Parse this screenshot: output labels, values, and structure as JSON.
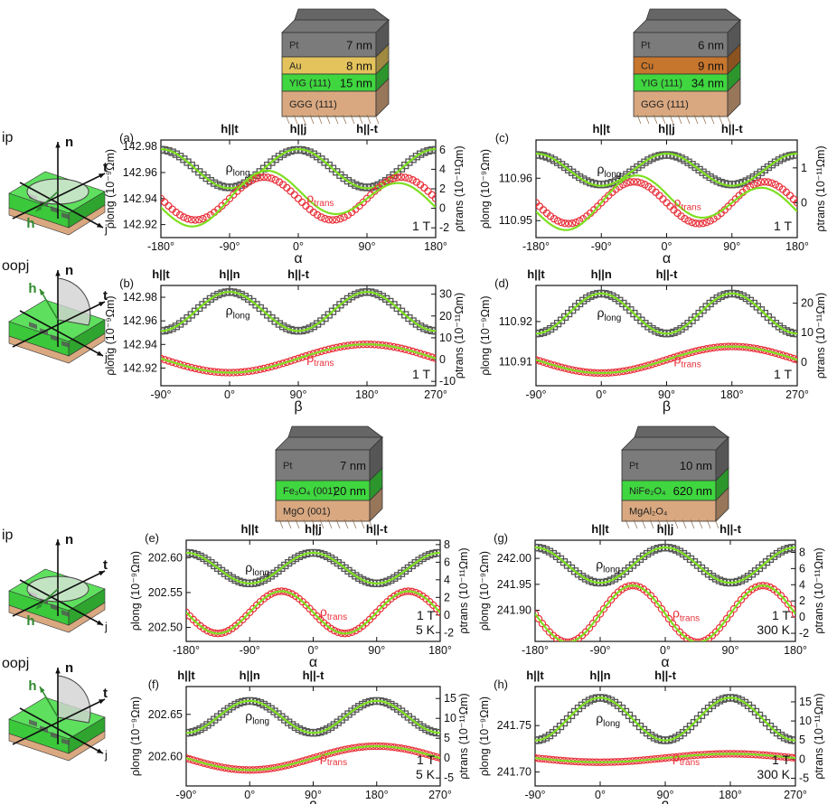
{
  "figure": {
    "stacks": [
      {
        "id": "s1",
        "layers": [
          {
            "material": "Pt",
            "thickness": "7 nm",
            "color": "#7b7b7b"
          },
          {
            "material": "Au",
            "thickness": "8 nm",
            "color": "#e4c35c"
          },
          {
            "material": "YIG (111)",
            "thickness": "15 nm",
            "color": "#3fd63f"
          },
          {
            "material": "GGG (111)",
            "thickness": "",
            "color": "#d9a880"
          }
        ]
      },
      {
        "id": "s2",
        "layers": [
          {
            "material": "Pt",
            "thickness": "6 nm",
            "color": "#7b7b7b"
          },
          {
            "material": "Cu",
            "thickness": "9 nm",
            "color": "#c7762d"
          },
          {
            "material": "YIG (111)",
            "thickness": "34 nm",
            "color": "#3fd63f"
          },
          {
            "material": "GGG (111)",
            "thickness": "",
            "color": "#d9a880"
          }
        ]
      },
      {
        "id": "s3",
        "layers": [
          {
            "material": "Pt",
            "thickness": "7 nm",
            "color": "#7b7b7b"
          },
          {
            "material": "Fe₃O₄ (001)",
            "thickness": "20 nm",
            "color": "#3fd63f"
          },
          {
            "material": "MgO (001)",
            "thickness": "",
            "color": "#d9a880"
          }
        ]
      },
      {
        "id": "s4",
        "layers": [
          {
            "material": "Pt",
            "thickness": "10 nm",
            "color": "#7b7b7b"
          },
          {
            "material": "NiFe₂O₄",
            "thickness": "620 nm",
            "color": "#3fd63f"
          },
          {
            "material": "MgAl₂O₄",
            "thickness": "",
            "color": "#d9a880"
          }
        ]
      }
    ],
    "geometry_labels": [
      "ip",
      "oopj",
      "ip",
      "oopj"
    ],
    "axis_letters": {
      "n": "n",
      "t": "t",
      "j": "j",
      "h": "h",
      "alpha": "α",
      "beta": "β"
    },
    "series_labels": {
      "long_main": "ρ",
      "long_sub": "long",
      "trans_main": "ρ",
      "trans_sub": "trans"
    },
    "y_labels": {
      "left": "ρlong (10⁻⁹Ωm)",
      "right": "ρtrans (10⁻¹¹Ωm)"
    },
    "colors": {
      "long_marker": "#555555",
      "trans_marker": "#e8303a",
      "fit": "#7ee020",
      "substrate": "#d9a880"
    }
  },
  "chart_data": [
    {
      "panel": "(a)",
      "type": "scatter",
      "xlabel": "α",
      "xlim": [
        -180,
        180
      ],
      "x_ticks": [
        "-180°",
        "-90°",
        "0°",
        "90°",
        "180°"
      ],
      "top_labels": [
        {
          "text": "h||t",
          "x": -90
        },
        {
          "text": "h||j",
          "x": 0
        },
        {
          "text": "h||-t",
          "x": 90
        }
      ],
      "ylim": [
        142.91,
        142.985
      ],
      "y_ticks": [
        "142.92",
        "142.94",
        "142.96",
        "142.98"
      ],
      "y2lim": [
        -3,
        7
      ],
      "y2_ticks": [
        "-2",
        "0",
        "2",
        "4",
        "6"
      ],
      "notes": [
        "1 T"
      ],
      "series": [
        {
          "name": "ρ_long",
          "axis": "left",
          "mean": 142.963,
          "amp": 0.0145,
          "phase": 0,
          "harm": 2,
          "fit_amp": 0.015,
          "fit_phase": 0
        },
        {
          "name": "ρ_trans",
          "axis": "right",
          "mean": 1.0,
          "amp": 2.2,
          "phase": -45,
          "harm": 2,
          "fit_amp": 2.2,
          "fit_phase": -45,
          "fit_extra": 0.9
        }
      ]
    },
    {
      "panel": "(b)",
      "type": "scatter",
      "xlabel": "β",
      "xlim": [
        -90,
        270
      ],
      "x_ticks": [
        "-90°",
        "0°",
        "90°",
        "180°",
        "270°"
      ],
      "top_labels": [
        {
          "text": "h||t",
          "x": -90
        },
        {
          "text": "h||n",
          "x": 0
        },
        {
          "text": "h||-t",
          "x": 90
        }
      ],
      "ylim": [
        142.905,
        142.99
      ],
      "y_ticks": [
        "142.92",
        "142.94",
        "142.96",
        "142.98"
      ],
      "y2lim": [
        -12,
        34
      ],
      "y2_ticks": [
        "-10",
        "0",
        "10",
        "20",
        "30"
      ],
      "notes": [
        "1 T"
      ],
      "series": [
        {
          "name": "ρ_long",
          "axis": "left",
          "mean": 142.968,
          "amp": 0.0165,
          "phase": 0,
          "harm": 2,
          "fit_amp": 0.0165,
          "fit_phase": 0
        },
        {
          "name": "ρ_trans",
          "axis": "right",
          "mean": 0.5,
          "amp": -6.5,
          "phase": 0,
          "harm": 1,
          "fit_amp": -6.5,
          "fit_phase": 0
        }
      ]
    },
    {
      "panel": "(c)",
      "type": "scatter",
      "xlabel": "α",
      "xlim": [
        -180,
        180
      ],
      "x_ticks": [
        "-180°",
        "-90°",
        "0°",
        "90°",
        "180°"
      ],
      "top_labels": [
        {
          "text": "h||t",
          "x": -90
        },
        {
          "text": "h||j",
          "x": 0
        },
        {
          "text": "h||-t",
          "x": 90
        }
      ],
      "ylim": [
        110.946,
        110.969
      ],
      "y_ticks": [
        "110.95",
        "110.96"
      ],
      "y2lim": [
        -1.0,
        1.8
      ],
      "y2_ticks": [
        "0",
        "1"
      ],
      "notes": [
        "1 T"
      ],
      "series": [
        {
          "name": "ρ_long",
          "axis": "left",
          "mean": 110.962,
          "amp": 0.0035,
          "phase": 0,
          "harm": 2,
          "fit_amp": 0.0038,
          "fit_phase": 0
        },
        {
          "name": "ρ_trans",
          "axis": "right",
          "mean": 0.0,
          "amp": 0.6,
          "phase": -45,
          "harm": 2,
          "fit_amp": 0.6,
          "fit_phase": -45,
          "fit_extra": 0.25
        }
      ]
    },
    {
      "panel": "(d)",
      "type": "scatter",
      "xlabel": "β",
      "xlim": [
        -90,
        270
      ],
      "x_ticks": [
        "-90°",
        "0°",
        "90°",
        "180°",
        "270°"
      ],
      "top_labels": [
        {
          "text": "h||t",
          "x": -90
        },
        {
          "text": "h||n",
          "x": 0
        },
        {
          "text": "h||-t",
          "x": 90
        }
      ],
      "ylim": [
        110.904,
        110.929
      ],
      "y_ticks": [
        "110.91",
        "110.92"
      ],
      "y2lim": [
        -8,
        26
      ],
      "y2_ticks": [
        "0",
        "10",
        "20"
      ],
      "notes": [
        "1 T"
      ],
      "series": [
        {
          "name": "ρ_long",
          "axis": "left",
          "mean": 110.922,
          "amp": 0.005,
          "phase": 0,
          "harm": 2,
          "fit_amp": 0.005,
          "fit_phase": 0
        },
        {
          "name": "ρ_trans",
          "axis": "right",
          "mean": 0.8,
          "amp": -4.5,
          "phase": 0,
          "harm": 1,
          "fit_amp": -4.5,
          "fit_phase": 0
        }
      ]
    },
    {
      "panel": "(e)",
      "type": "scatter",
      "xlabel": "α",
      "xlim": [
        -180,
        180
      ],
      "x_ticks": [
        "-180°",
        "-90°",
        "0°",
        "90°",
        "180°"
      ],
      "top_labels": [
        {
          "text": "h||t",
          "x": -90
        },
        {
          "text": "h||j",
          "x": 0
        },
        {
          "text": "h||-t",
          "x": 90
        }
      ],
      "ylim": [
        202.48,
        202.625
      ],
      "y_ticks": [
        "202.50",
        "202.55",
        "202.60"
      ],
      "y2lim": [
        -3,
        8.5
      ],
      "y2_ticks": [
        "-2",
        "0",
        "2",
        "4",
        "6",
        "8"
      ],
      "notes": [
        "1 T",
        "5 K"
      ],
      "series": [
        {
          "name": "ρ_long",
          "axis": "left",
          "mean": 202.585,
          "amp": 0.022,
          "phase": 0,
          "harm": 2,
          "fit_amp": 0.022,
          "fit_phase": 0
        },
        {
          "name": "ρ_trans",
          "axis": "right",
          "mean": 0.3,
          "amp": 2.4,
          "phase": -45,
          "harm": 2,
          "fit_amp": 2.4,
          "fit_phase": -45
        }
      ]
    },
    {
      "panel": "(f)",
      "type": "scatter",
      "xlabel": "β",
      "xlim": [
        -90,
        270
      ],
      "x_ticks": [
        "-90°",
        "0°",
        "90°",
        "180°",
        "270°"
      ],
      "top_labels": [
        {
          "text": "h||t",
          "x": -90
        },
        {
          "text": "h||n",
          "x": 0
        },
        {
          "text": "h||-t",
          "x": 90
        }
      ],
      "ylim": [
        202.565,
        202.683
      ],
      "y_ticks": [
        "202.60",
        "202.65"
      ],
      "y2lim": [
        -7,
        18
      ],
      "y2_ticks": [
        "-5",
        "0",
        "5",
        "10",
        "15"
      ],
      "notes": [
        "1 T",
        "5 K"
      ],
      "series": [
        {
          "name": "ρ_long",
          "axis": "left",
          "mean": 202.647,
          "amp": 0.019,
          "phase": 0,
          "harm": 2,
          "fit_amp": 0.019,
          "fit_phase": 0
        },
        {
          "name": "ρ_trans",
          "axis": "right",
          "mean": 0.0,
          "amp": -3.0,
          "phase": 0,
          "harm": 1,
          "fit_amp": -3.0,
          "fit_phase": 0
        }
      ]
    },
    {
      "panel": "(g)",
      "type": "scatter",
      "xlabel": "α",
      "xlim": [
        -180,
        180
      ],
      "x_ticks": [
        "-180°",
        "-90°",
        "0°",
        "90°",
        "180°"
      ],
      "top_labels": [
        {
          "text": "h||t",
          "x": -90
        },
        {
          "text": "h||j",
          "x": 0
        },
        {
          "text": "h||-t",
          "x": 90
        }
      ],
      "ylim": [
        241.84,
        242.035
      ],
      "y_ticks": [
        "241.90",
        "241.95",
        "242.00"
      ],
      "y2lim": [
        -3,
        9.5
      ],
      "y2_ticks": [
        "-2",
        "0",
        "2",
        "4",
        "6",
        "8"
      ],
      "notes": [
        "1 T",
        "300 K"
      ],
      "series": [
        {
          "name": "ρ_long",
          "axis": "left",
          "mean": 241.987,
          "amp": 0.034,
          "phase": 0,
          "harm": 2,
          "fit_amp": 0.034,
          "fit_phase": 0
        },
        {
          "name": "ρ_trans",
          "axis": "right",
          "mean": 0.4,
          "amp": 3.5,
          "phase": -45,
          "harm": 2,
          "fit_amp": 3.5,
          "fit_phase": -45
        }
      ]
    },
    {
      "panel": "(h)",
      "type": "scatter",
      "xlabel": "β",
      "xlim": [
        -90,
        270
      ],
      "x_ticks": [
        "-90°",
        "0°",
        "90°",
        "180°",
        "270°"
      ],
      "top_labels": [
        {
          "text": "h||t",
          "x": -90
        },
        {
          "text": "h||n",
          "x": 0
        },
        {
          "text": "h||-t",
          "x": 90
        }
      ],
      "ylim": [
        241.685,
        241.792
      ],
      "y_ticks": [
        "241.70",
        "241.75"
      ],
      "y2lim": [
        -7,
        19
      ],
      "y2_ticks": [
        "-5",
        "0",
        "5",
        "10",
        "15"
      ],
      "notes": [
        "1 T",
        "300 K"
      ],
      "series": [
        {
          "name": "ρ_long",
          "axis": "left",
          "mean": 241.757,
          "amp": 0.023,
          "phase": 0,
          "harm": 2,
          "fit_amp": 0.023,
          "fit_phase": 0
        },
        {
          "name": "ρ_trans",
          "axis": "right",
          "mean": 0.3,
          "amp": -1.1,
          "phase": 0,
          "harm": 1,
          "fit_amp": -1.1,
          "fit_phase": 0
        }
      ]
    }
  ]
}
